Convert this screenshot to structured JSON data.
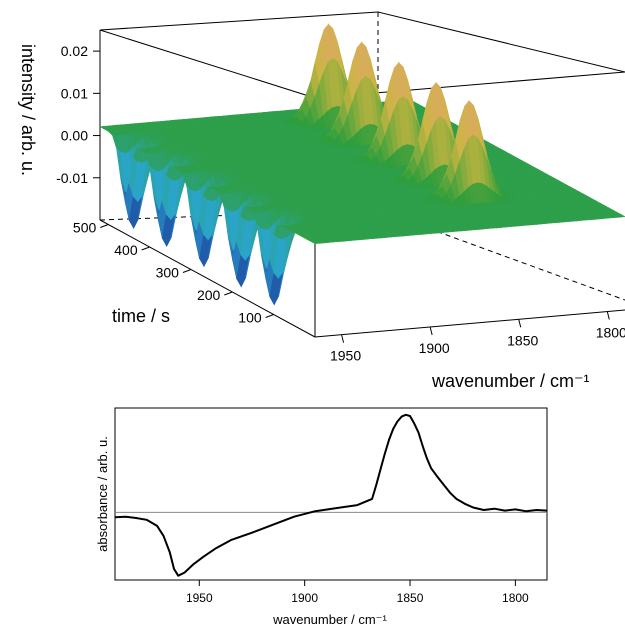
{
  "chart_data": [
    {
      "type": "surface",
      "title": "",
      "xlabel": "wavenumber / cm⁻¹",
      "ylabel": "time / s",
      "zlabel": "intensity / arb. u.",
      "x_ticks": [
        "1950",
        "1900",
        "1850",
        "1800"
      ],
      "y_ticks": [
        "100",
        "200",
        "300",
        "400",
        "500"
      ],
      "z_ticks": [
        "-0.01",
        "0.00",
        "0.01",
        "0.02"
      ],
      "xlim": [
        1965,
        1790
      ],
      "ylim": [
        0,
        520
      ],
      "zlim": [
        -0.02,
        0.025
      ],
      "colormap": [
        "#1b2e8f",
        "#2aa6d6",
        "#2e9e3c",
        "#c9b640",
        "#e0a868"
      ],
      "pulses_time": [
        120,
        200,
        290,
        380,
        460
      ],
      "negative_band_center": 1960,
      "positive_band_center": 1850,
      "peak_intensity": 0.021,
      "trough_intensity": -0.019
    },
    {
      "type": "line",
      "title": "",
      "xlabel": "wavenumber / cm⁻¹",
      "ylabel": "absorbance / arb. u.",
      "x_ticks": [
        "1950",
        "1900",
        "1850",
        "1800"
      ],
      "xlim": [
        1990,
        1785
      ],
      "ylim": [
        -1.1,
        1.7
      ],
      "baseline": 0,
      "series": [
        {
          "x": [
            1990,
            1985,
            1980,
            1975,
            1970,
            1967,
            1964,
            1962,
            1960,
            1957,
            1953,
            1948,
            1942,
            1935,
            1925,
            1915,
            1905,
            1895,
            1885,
            1875,
            1868,
            1866,
            1864,
            1862,
            1860,
            1858,
            1856,
            1854,
            1852,
            1850,
            1848,
            1846,
            1844,
            1842,
            1840,
            1837,
            1834,
            1831,
            1828,
            1824,
            1820,
            1815,
            1810,
            1805,
            1800,
            1795,
            1790,
            1785
          ],
          "y": [
            -0.08,
            -0.07,
            -0.09,
            -0.12,
            -0.22,
            -0.38,
            -0.65,
            -0.92,
            -1.03,
            -0.98,
            -0.85,
            -0.72,
            -0.58,
            -0.45,
            -0.33,
            -0.2,
            -0.07,
            0.02,
            0.07,
            0.12,
            0.22,
            0.45,
            0.7,
            0.95,
            1.18,
            1.36,
            1.48,
            1.56,
            1.59,
            1.57,
            1.45,
            1.3,
            1.08,
            0.88,
            0.72,
            0.58,
            0.45,
            0.32,
            0.22,
            0.14,
            0.08,
            0.04,
            0.06,
            0.03,
            0.05,
            0.02,
            0.04,
            0.03
          ]
        }
      ]
    }
  ]
}
